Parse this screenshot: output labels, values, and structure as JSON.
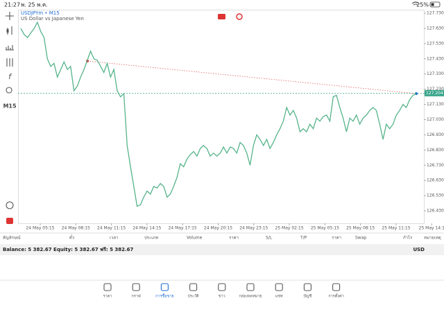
{
  "status_bar": {
    "time": "21:27",
    "date": "พ. 25 พ.ค.",
    "battery": "25%"
  },
  "toolbar": {
    "timeframe": "M15"
  },
  "chart": {
    "type": "line",
    "symbol": "USDJPYm • M15",
    "description": "US Dollar vs Japanese Yen",
    "color": "#55b38a",
    "values": [
      127.63,
      127.59,
      127.57,
      127.6,
      127.63,
      127.67,
      127.61,
      127.57,
      127.43,
      127.38,
      127.4,
      127.31,
      127.36,
      127.41,
      127.36,
      127.38,
      127.22,
      127.25,
      127.31,
      127.36,
      127.42,
      127.48,
      127.43,
      127.42,
      127.38,
      127.34,
      127.4,
      127.31,
      127.36,
      127.22,
      127.18,
      127.2,
      126.86,
      126.72,
      126.59,
      126.46,
      126.47,
      126.52,
      126.56,
      126.54,
      126.59,
      126.58,
      126.61,
      126.59,
      126.52,
      126.54,
      126.59,
      126.65,
      126.74,
      126.72,
      126.77,
      126.8,
      126.82,
      126.79,
      126.84,
      126.86,
      126.84,
      126.79,
      126.81,
      126.79,
      126.81,
      126.85,
      126.81,
      126.85,
      126.84,
      126.81,
      126.88,
      126.86,
      126.81,
      126.73,
      126.86,
      126.93,
      126.9,
      126.86,
      126.9,
      126.84,
      126.88,
      126.93,
      126.97,
      127.02,
      127.11,
      127.06,
      127.09,
      127.04,
      126.95,
      126.97,
      126.95,
      127.0,
      126.97,
      127.04,
      127.02,
      127.05,
      127.06,
      127.02,
      127.18,
      127.19,
      127.11,
      127.04,
      126.95,
      127.04,
      127.02,
      127.06,
      127.0,
      127.04,
      127.06,
      127.09,
      127.11,
      127.09,
      127.0,
      126.9,
      127.0,
      126.97,
      127.0,
      127.06,
      127.09,
      127.13,
      127.11,
      127.16,
      127.19,
      127.2
    ],
    "ylim": [
      126.348,
      127.753
    ],
    "yticks": [
      {
        "value": 127.73,
        "label": "127.730"
      },
      {
        "value": 127.63,
        "label": "127.630"
      },
      {
        "value": 127.53,
        "label": "127.530"
      },
      {
        "value": 127.43,
        "label": "127.430"
      },
      {
        "value": 127.33,
        "label": "127.330"
      },
      {
        "value": 127.23,
        "label": "127.230"
      },
      {
        "value": 127.13,
        "label": "127.130"
      },
      {
        "value": 127.03,
        "label": "127.030"
      },
      {
        "value": 126.93,
        "label": "126.930"
      },
      {
        "value": 126.83,
        "label": "126.830"
      },
      {
        "value": 126.73,
        "label": "126.730"
      },
      {
        "value": 126.63,
        "label": "126.630"
      },
      {
        "value": 126.53,
        "label": "126.530"
      },
      {
        "value": 126.43,
        "label": "126.430"
      }
    ],
    "current_price": 127.204,
    "xticks": [
      "24 May 05:15",
      "24 May 08:15",
      "24 May 11:15",
      "24 May 14:15",
      "24 May 17:15",
      "24 May 20:15",
      "24 May 23:15",
      "25 May 02:15",
      "25 May 05:15",
      "25 May 08:15",
      "25 May 11:15",
      "25 May 14:1"
    ]
  },
  "trade_table": {
    "columns": [
      "สัญลักษณ์",
      "ตั๋ว",
      "เวลา",
      "ประเภท",
      "Volume",
      "ราคา",
      "S/L",
      "T/P",
      "ราคา",
      "Swap",
      "กำไร",
      "หมายเหตุ"
    ]
  },
  "account": {
    "summary": "Balance: 5 382.67 Equity: 5 382.67 ฟรี: 5 382.67",
    "currency": "USD"
  },
  "tabs": [
    {
      "label": "ราคา"
    },
    {
      "label": "กราฟ"
    },
    {
      "label": "การซื้อขาย",
      "active": true
    },
    {
      "label": "ประวัติ"
    },
    {
      "label": "ข่าว"
    },
    {
      "label": "กล่องจดหมาย"
    },
    {
      "label": "แชท"
    },
    {
      "label": "บัญชี"
    },
    {
      "label": "การตั้งค่า"
    }
  ]
}
